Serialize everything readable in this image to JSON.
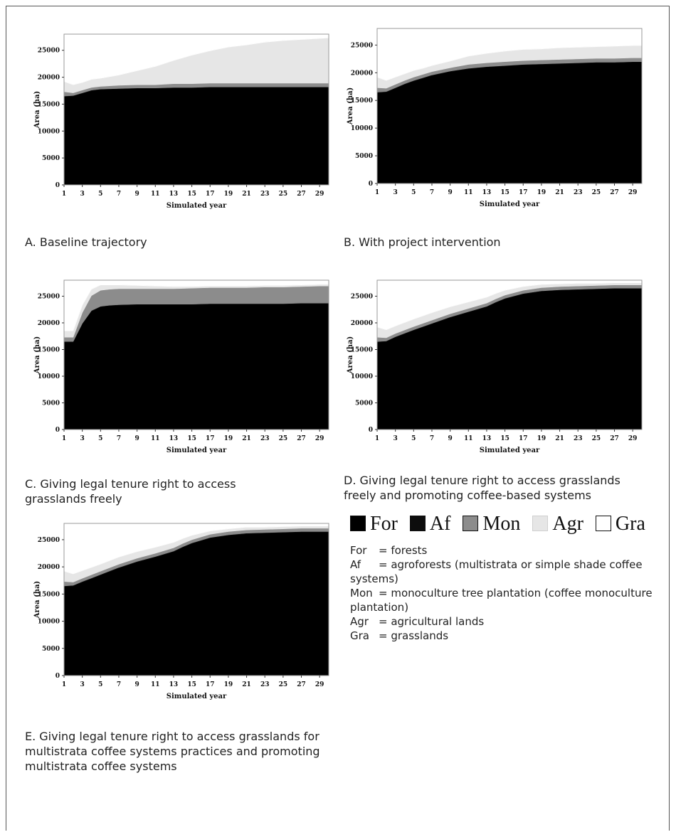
{
  "legend": [
    {
      "code": "For",
      "label": "For",
      "color": "#000000"
    },
    {
      "code": "Af",
      "label": "Af",
      "color": "#0d0d0d"
    },
    {
      "code": "Mon",
      "label": "Mon",
      "color": "#8c8c8c"
    },
    {
      "code": "Agr",
      "label": "Agr",
      "color": "#e6e6e6"
    },
    {
      "code": "Gra",
      "label": "Gra",
      "color": "#ffffff"
    }
  ],
  "definitions": [
    {
      "code": "For",
      "text": "= forests"
    },
    {
      "code": "Af",
      "text": "= agroforests (multistrata or simple shade coffee systems)"
    },
    {
      "code": "Mon",
      "text": "= monoculture tree plantation (coffee monoculture plantation)"
    },
    {
      "code": "Agr",
      "text": "= agricultural lands"
    },
    {
      "code": "Gra",
      "text": "= grasslands"
    }
  ],
  "chart_data": [
    {
      "type": "area",
      "caption": "A. Baseline trajectory",
      "xlabel": "Simulated year",
      "ylabel": "Area (ha)",
      "x": [
        1,
        2,
        3,
        4,
        5,
        7,
        9,
        11,
        13,
        15,
        17,
        19,
        21,
        23,
        25,
        27,
        29,
        30
      ],
      "xticks": [
        1,
        3,
        5,
        7,
        9,
        11,
        13,
        15,
        17,
        19,
        21,
        23,
        25,
        27,
        29
      ],
      "yticks": [
        0,
        5000,
        10000,
        15000,
        20000,
        25000
      ],
      "ylim": [
        0,
        28000
      ],
      "stacked": true,
      "series": [
        {
          "name": "For",
          "values": [
            16400,
            16500,
            17000,
            17500,
            17700,
            17800,
            17900,
            17900,
            18000,
            18000,
            18100,
            18100,
            18100,
            18100,
            18100,
            18100,
            18100,
            18100
          ]
        },
        {
          "name": "Af",
          "values": [
            100,
            100,
            100,
            100,
            100,
            100,
            100,
            100,
            100,
            100,
            100,
            100,
            100,
            100,
            100,
            100,
            100,
            100
          ]
        },
        {
          "name": "Mon",
          "values": [
            800,
            500,
            500,
            500,
            500,
            600,
            600,
            600,
            700,
            700,
            700,
            700,
            700,
            700,
            700,
            700,
            700,
            700
          ]
        },
        {
          "name": "Agr",
          "values": [
            1900,
            1500,
            1400,
            1500,
            1500,
            1900,
            2600,
            3400,
            4300,
            5300,
            6000,
            6700,
            7100,
            7600,
            7900,
            8100,
            8300,
            8400
          ]
        },
        {
          "name": "Gra",
          "values": [
            0,
            0,
            0,
            0,
            0,
            0,
            0,
            0,
            0,
            0,
            0,
            0,
            0,
            0,
            0,
            0,
            0,
            0
          ]
        }
      ]
    },
    {
      "type": "area",
      "caption": "B. With project intervention",
      "xlabel": "Simulated year",
      "ylabel": "Area (ha)",
      "x": [
        1,
        2,
        3,
        4,
        5,
        6,
        7,
        9,
        11,
        13,
        15,
        17,
        19,
        21,
        23,
        25,
        27,
        29,
        30
      ],
      "xticks": [
        1,
        3,
        5,
        7,
        9,
        11,
        13,
        15,
        17,
        19,
        21,
        23,
        25,
        27,
        29
      ],
      "yticks": [
        0,
        5000,
        10000,
        15000,
        20000,
        25000
      ],
      "ylim": [
        0,
        28000
      ],
      "stacked": true,
      "series": [
        {
          "name": "For",
          "values": [
            16400,
            16500,
            17200,
            17900,
            18500,
            19000,
            19500,
            20200,
            20700,
            21000,
            21200,
            21400,
            21500,
            21600,
            21700,
            21800,
            21800,
            21900,
            21900
          ]
        },
        {
          "name": "Af",
          "values": [
            100,
            100,
            100,
            100,
            100,
            100,
            100,
            100,
            100,
            100,
            100,
            100,
            100,
            100,
            100,
            100,
            100,
            100,
            100
          ]
        },
        {
          "name": "Mon",
          "values": [
            800,
            600,
            600,
            600,
            600,
            600,
            600,
            600,
            700,
            700,
            700,
            700,
            700,
            700,
            700,
            700,
            700,
            700,
            700
          ]
        },
        {
          "name": "Agr",
          "values": [
            1900,
            1400,
            1300,
            1200,
            1200,
            1100,
            1100,
            1200,
            1500,
            1700,
            1900,
            2000,
            2000,
            2100,
            2100,
            2100,
            2200,
            2200,
            2200
          ]
        },
        {
          "name": "Gra",
          "values": [
            0,
            0,
            0,
            0,
            0,
            0,
            0,
            0,
            0,
            0,
            0,
            0,
            0,
            0,
            0,
            0,
            0,
            0,
            0
          ]
        }
      ]
    },
    {
      "type": "area",
      "caption": "C. Giving legal tenure right to access grasslands freely",
      "xlabel": "Simulated year",
      "ylabel": "Area (ha)",
      "x": [
        1,
        2,
        3,
        4,
        5,
        6,
        7,
        9,
        11,
        13,
        15,
        17,
        19,
        21,
        23,
        25,
        27,
        29,
        30
      ],
      "xticks": [
        1,
        3,
        5,
        7,
        9,
        11,
        13,
        15,
        17,
        19,
        21,
        23,
        25,
        27,
        29
      ],
      "yticks": [
        0,
        5000,
        10000,
        15000,
        20000,
        25000
      ],
      "ylim": [
        0,
        28000
      ],
      "stacked": true,
      "series": [
        {
          "name": "For",
          "values": [
            16400,
            16400,
            19800,
            22200,
            23000,
            23200,
            23300,
            23400,
            23400,
            23400,
            23400,
            23500,
            23500,
            23500,
            23500,
            23500,
            23600,
            23600,
            23600
          ]
        },
        {
          "name": "Af",
          "values": [
            100,
            100,
            100,
            100,
            100,
            100,
            100,
            100,
            100,
            100,
            100,
            100,
            100,
            100,
            100,
            100,
            100,
            100,
            100
          ]
        },
        {
          "name": "Mon",
          "values": [
            800,
            800,
            2000,
            2800,
            3000,
            3000,
            3000,
            2900,
            2900,
            2900,
            3000,
            3000,
            3000,
            3000,
            3100,
            3100,
            3100,
            3200,
            3200
          ]
        },
        {
          "name": "Agr",
          "values": [
            1200,
            1200,
            1400,
            1200,
            1000,
            800,
            700,
            600,
            500,
            400,
            300,
            300,
            300,
            300,
            300,
            300,
            300,
            300,
            300
          ]
        },
        {
          "name": "Gra",
          "values": [
            0,
            0,
            0,
            0,
            0,
            0,
            0,
            0,
            0,
            0,
            0,
            0,
            0,
            0,
            0,
            0,
            0,
            0,
            0
          ]
        }
      ]
    },
    {
      "type": "area",
      "caption": "D. Giving legal tenure right to access grasslands freely and promoting coffee-based systems",
      "xlabel": "Simulated year",
      "ylabel": "Area (ha)",
      "x": [
        1,
        2,
        3,
        5,
        7,
        9,
        11,
        13,
        14,
        15,
        17,
        19,
        21,
        23,
        25,
        27,
        29,
        30
      ],
      "xticks": [
        1,
        3,
        5,
        7,
        9,
        11,
        13,
        15,
        17,
        19,
        21,
        23,
        25,
        27,
        29
      ],
      "yticks": [
        0,
        5000,
        10000,
        15000,
        20000,
        25000
      ],
      "ylim": [
        0,
        28000
      ],
      "stacked": true,
      "series": [
        {
          "name": "For",
          "values": [
            16400,
            16500,
            17300,
            18600,
            19800,
            21000,
            22000,
            23000,
            23800,
            24500,
            25400,
            25900,
            26100,
            26200,
            26300,
            26400,
            26400,
            26400
          ]
        },
        {
          "name": "Af",
          "values": [
            100,
            100,
            100,
            100,
            100,
            100,
            100,
            100,
            100,
            100,
            100,
            100,
            100,
            100,
            100,
            100,
            100,
            100
          ]
        },
        {
          "name": "Mon",
          "values": [
            800,
            600,
            600,
            600,
            600,
            600,
            600,
            600,
            600,
            600,
            600,
            600,
            600,
            600,
            600,
            600,
            600,
            600
          ]
        },
        {
          "name": "Agr",
          "values": [
            1900,
            1500,
            1400,
            1400,
            1400,
            1300,
            1200,
            1100,
            1000,
            900,
            700,
            600,
            500,
            500,
            400,
            400,
            400,
            400
          ]
        },
        {
          "name": "Gra",
          "values": [
            0,
            0,
            0,
            0,
            0,
            0,
            0,
            0,
            0,
            0,
            0,
            0,
            0,
            0,
            0,
            0,
            0,
            0
          ]
        }
      ]
    },
    {
      "type": "area",
      "caption": "E. Giving legal tenure right to access grasslands for multistrata coffee systems practices and promoting multistrata coffee systems",
      "xlabel": "Simulated year",
      "ylabel": "Area (ha)",
      "x": [
        1,
        2,
        3,
        5,
        7,
        9,
        11,
        13,
        14,
        15,
        17,
        19,
        21,
        23,
        25,
        27,
        29,
        30
      ],
      "xticks": [
        1,
        3,
        5,
        7,
        9,
        11,
        13,
        15,
        17,
        19,
        21,
        23,
        25,
        27,
        29
      ],
      "yticks": [
        0,
        5000,
        10000,
        15000,
        20000,
        25000
      ],
      "ylim": [
        0,
        28000
      ],
      "stacked": true,
      "series": [
        {
          "name": "For",
          "values": [
            16400,
            16500,
            17200,
            18500,
            19800,
            20900,
            21800,
            22800,
            23600,
            24300,
            25300,
            25800,
            26100,
            26200,
            26300,
            26400,
            26400,
            26400
          ]
        },
        {
          "name": "Af",
          "values": [
            100,
            100,
            100,
            100,
            100,
            100,
            100,
            100,
            100,
            100,
            100,
            100,
            100,
            100,
            100,
            100,
            100,
            100
          ]
        },
        {
          "name": "Mon",
          "values": [
            800,
            600,
            600,
            600,
            600,
            600,
            600,
            600,
            600,
            600,
            600,
            600,
            600,
            600,
            600,
            600,
            600,
            600
          ]
        },
        {
          "name": "Agr",
          "values": [
            1900,
            1500,
            1400,
            1300,
            1300,
            1200,
            1100,
            1000,
            900,
            800,
            600,
            500,
            500,
            400,
            400,
            400,
            400,
            400
          ]
        },
        {
          "name": "Gra",
          "values": [
            0,
            0,
            0,
            0,
            0,
            0,
            0,
            0,
            0,
            0,
            0,
            0,
            0,
            0,
            0,
            0,
            0,
            0
          ]
        }
      ]
    }
  ]
}
